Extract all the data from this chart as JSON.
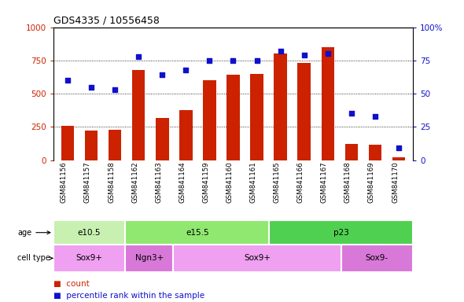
{
  "title": "GDS4335 / 10556458",
  "samples": [
    "GSM841156",
    "GSM841157",
    "GSM841158",
    "GSM841162",
    "GSM841163",
    "GSM841164",
    "GSM841159",
    "GSM841160",
    "GSM841161",
    "GSM841165",
    "GSM841166",
    "GSM841167",
    "GSM841168",
    "GSM841169",
    "GSM841170"
  ],
  "counts": [
    255,
    220,
    230,
    680,
    315,
    375,
    600,
    640,
    650,
    800,
    730,
    850,
    120,
    115,
    20
  ],
  "percentiles": [
    60,
    55,
    53,
    78,
    64,
    68,
    75,
    75,
    75,
    82,
    79,
    80,
    35,
    33,
    9
  ],
  "age_groups": [
    {
      "label": "e10.5",
      "start": 0,
      "end": 3,
      "color": "#c8f0b0"
    },
    {
      "label": "e15.5",
      "start": 3,
      "end": 9,
      "color": "#90e870"
    },
    {
      "label": "p23",
      "start": 9,
      "end": 15,
      "color": "#50d050"
    }
  ],
  "cell_type_groups": [
    {
      "label": "Sox9+",
      "start": 0,
      "end": 3,
      "color": "#f0a0f0"
    },
    {
      "label": "Ngn3+",
      "start": 3,
      "end": 5,
      "color": "#d878d8"
    },
    {
      "label": "Sox9+",
      "start": 5,
      "end": 12,
      "color": "#f0a0f0"
    },
    {
      "label": "Sox9-",
      "start": 12,
      "end": 15,
      "color": "#d878d8"
    }
  ],
  "bar_color": "#cc2200",
  "dot_color": "#1010cc",
  "ylim_left": [
    0,
    1000
  ],
  "ylim_right": [
    0,
    100
  ],
  "yticks_left": [
    0,
    250,
    500,
    750,
    1000
  ],
  "yticks_right": [
    0,
    25,
    50,
    75,
    100
  ],
  "grid_values": [
    250,
    500,
    750
  ],
  "xtick_bg": "#c8c8c8",
  "background_main": "#ffffff",
  "legend_count": "count",
  "legend_pct": "percentile rank within the sample"
}
